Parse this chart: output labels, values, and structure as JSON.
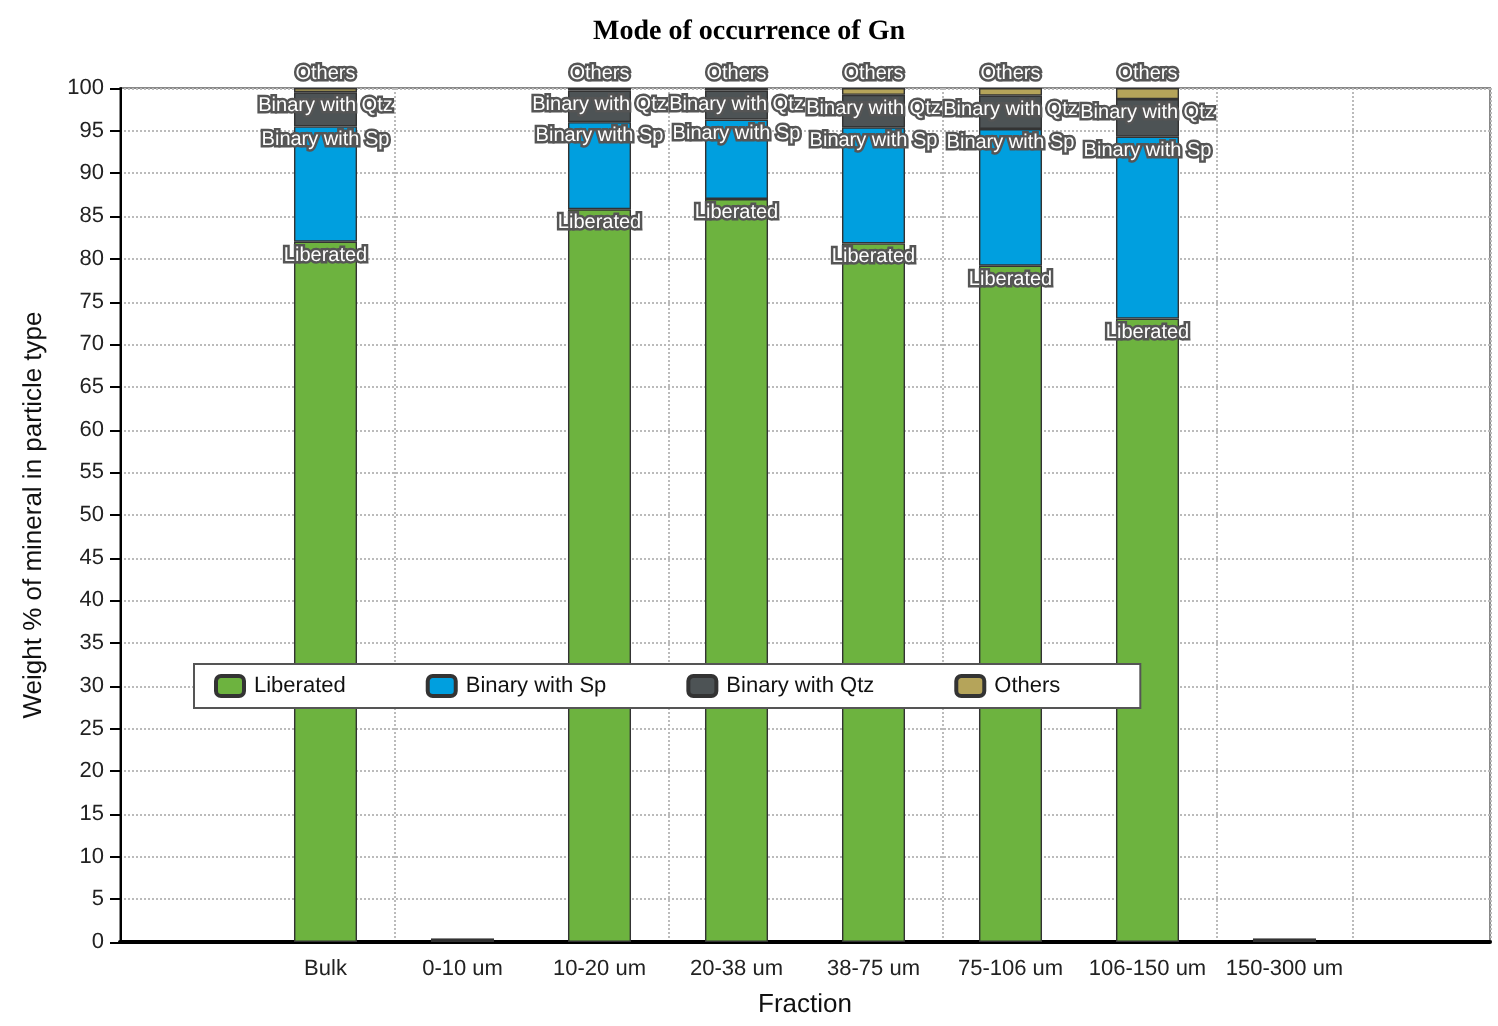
{
  "chart_data": {
    "type": "bar",
    "title": "Mode of occurrence of Gn",
    "xlabel": "Fraction",
    "ylabel": "Weight % of mineral in particle type",
    "categories": [
      null,
      "Bulk",
      "0-10 um",
      "10-20 um",
      "20-38 um",
      "38-75 um",
      "75-106 um",
      "106-150 um",
      "150-300 um",
      null
    ],
    "stacked": true,
    "series": [
      {
        "name": "Liberated",
        "color": "#6db33f",
        "values": [
          null,
          82,
          0.3,
          85.8,
          87,
          81.8,
          79.2,
          73,
          0.3,
          null
        ],
        "value_labels": [
          null,
          "Liberated",
          null,
          "Liberated",
          "Liberated",
          "Liberated",
          "Liberated",
          "Liberated",
          null,
          null
        ]
      },
      {
        "name": "Binary with Sp",
        "color": "#009fdf",
        "values": [
          null,
          13.5,
          0,
          10.2,
          9.3,
          13.6,
          16,
          21.3,
          0,
          null
        ],
        "value_labels": [
          null,
          "Binary with Sp",
          null,
          "Binary with Sp",
          "Binary with Sp",
          "Binary with Sp",
          "Binary with Sp",
          "Binary with Sp",
          null,
          null
        ]
      },
      {
        "name": "Binary with Qtz",
        "color": "#4d5355",
        "values": [
          null,
          4,
          0,
          3.7,
          3.4,
          3.8,
          3.9,
          4.4,
          0,
          null
        ],
        "value_labels": [
          null,
          "Binary with Qtz",
          null,
          "Binary with Qtz",
          "Binary with Qtz",
          "Binary with Qtz",
          "Binary with Qtz",
          "Binary with Qtz",
          null,
          null
        ]
      },
      {
        "name": "Others",
        "color": "#b5a45a",
        "values": [
          null,
          0.5,
          0,
          0.3,
          0.3,
          0.8,
          0.9,
          1.3,
          0,
          null
        ],
        "value_labels": [
          null,
          "Others",
          null,
          "Others",
          "Others",
          "Others",
          "Others",
          "Others",
          null,
          null
        ]
      }
    ],
    "ylim": [
      0,
      100
    ],
    "yticks": [
      0,
      5,
      10,
      15,
      20,
      25,
      30,
      35,
      40,
      45,
      50,
      55,
      60,
      65,
      70,
      75,
      80,
      85,
      90,
      95,
      100
    ],
    "grid": true,
    "legend": "left"
  }
}
